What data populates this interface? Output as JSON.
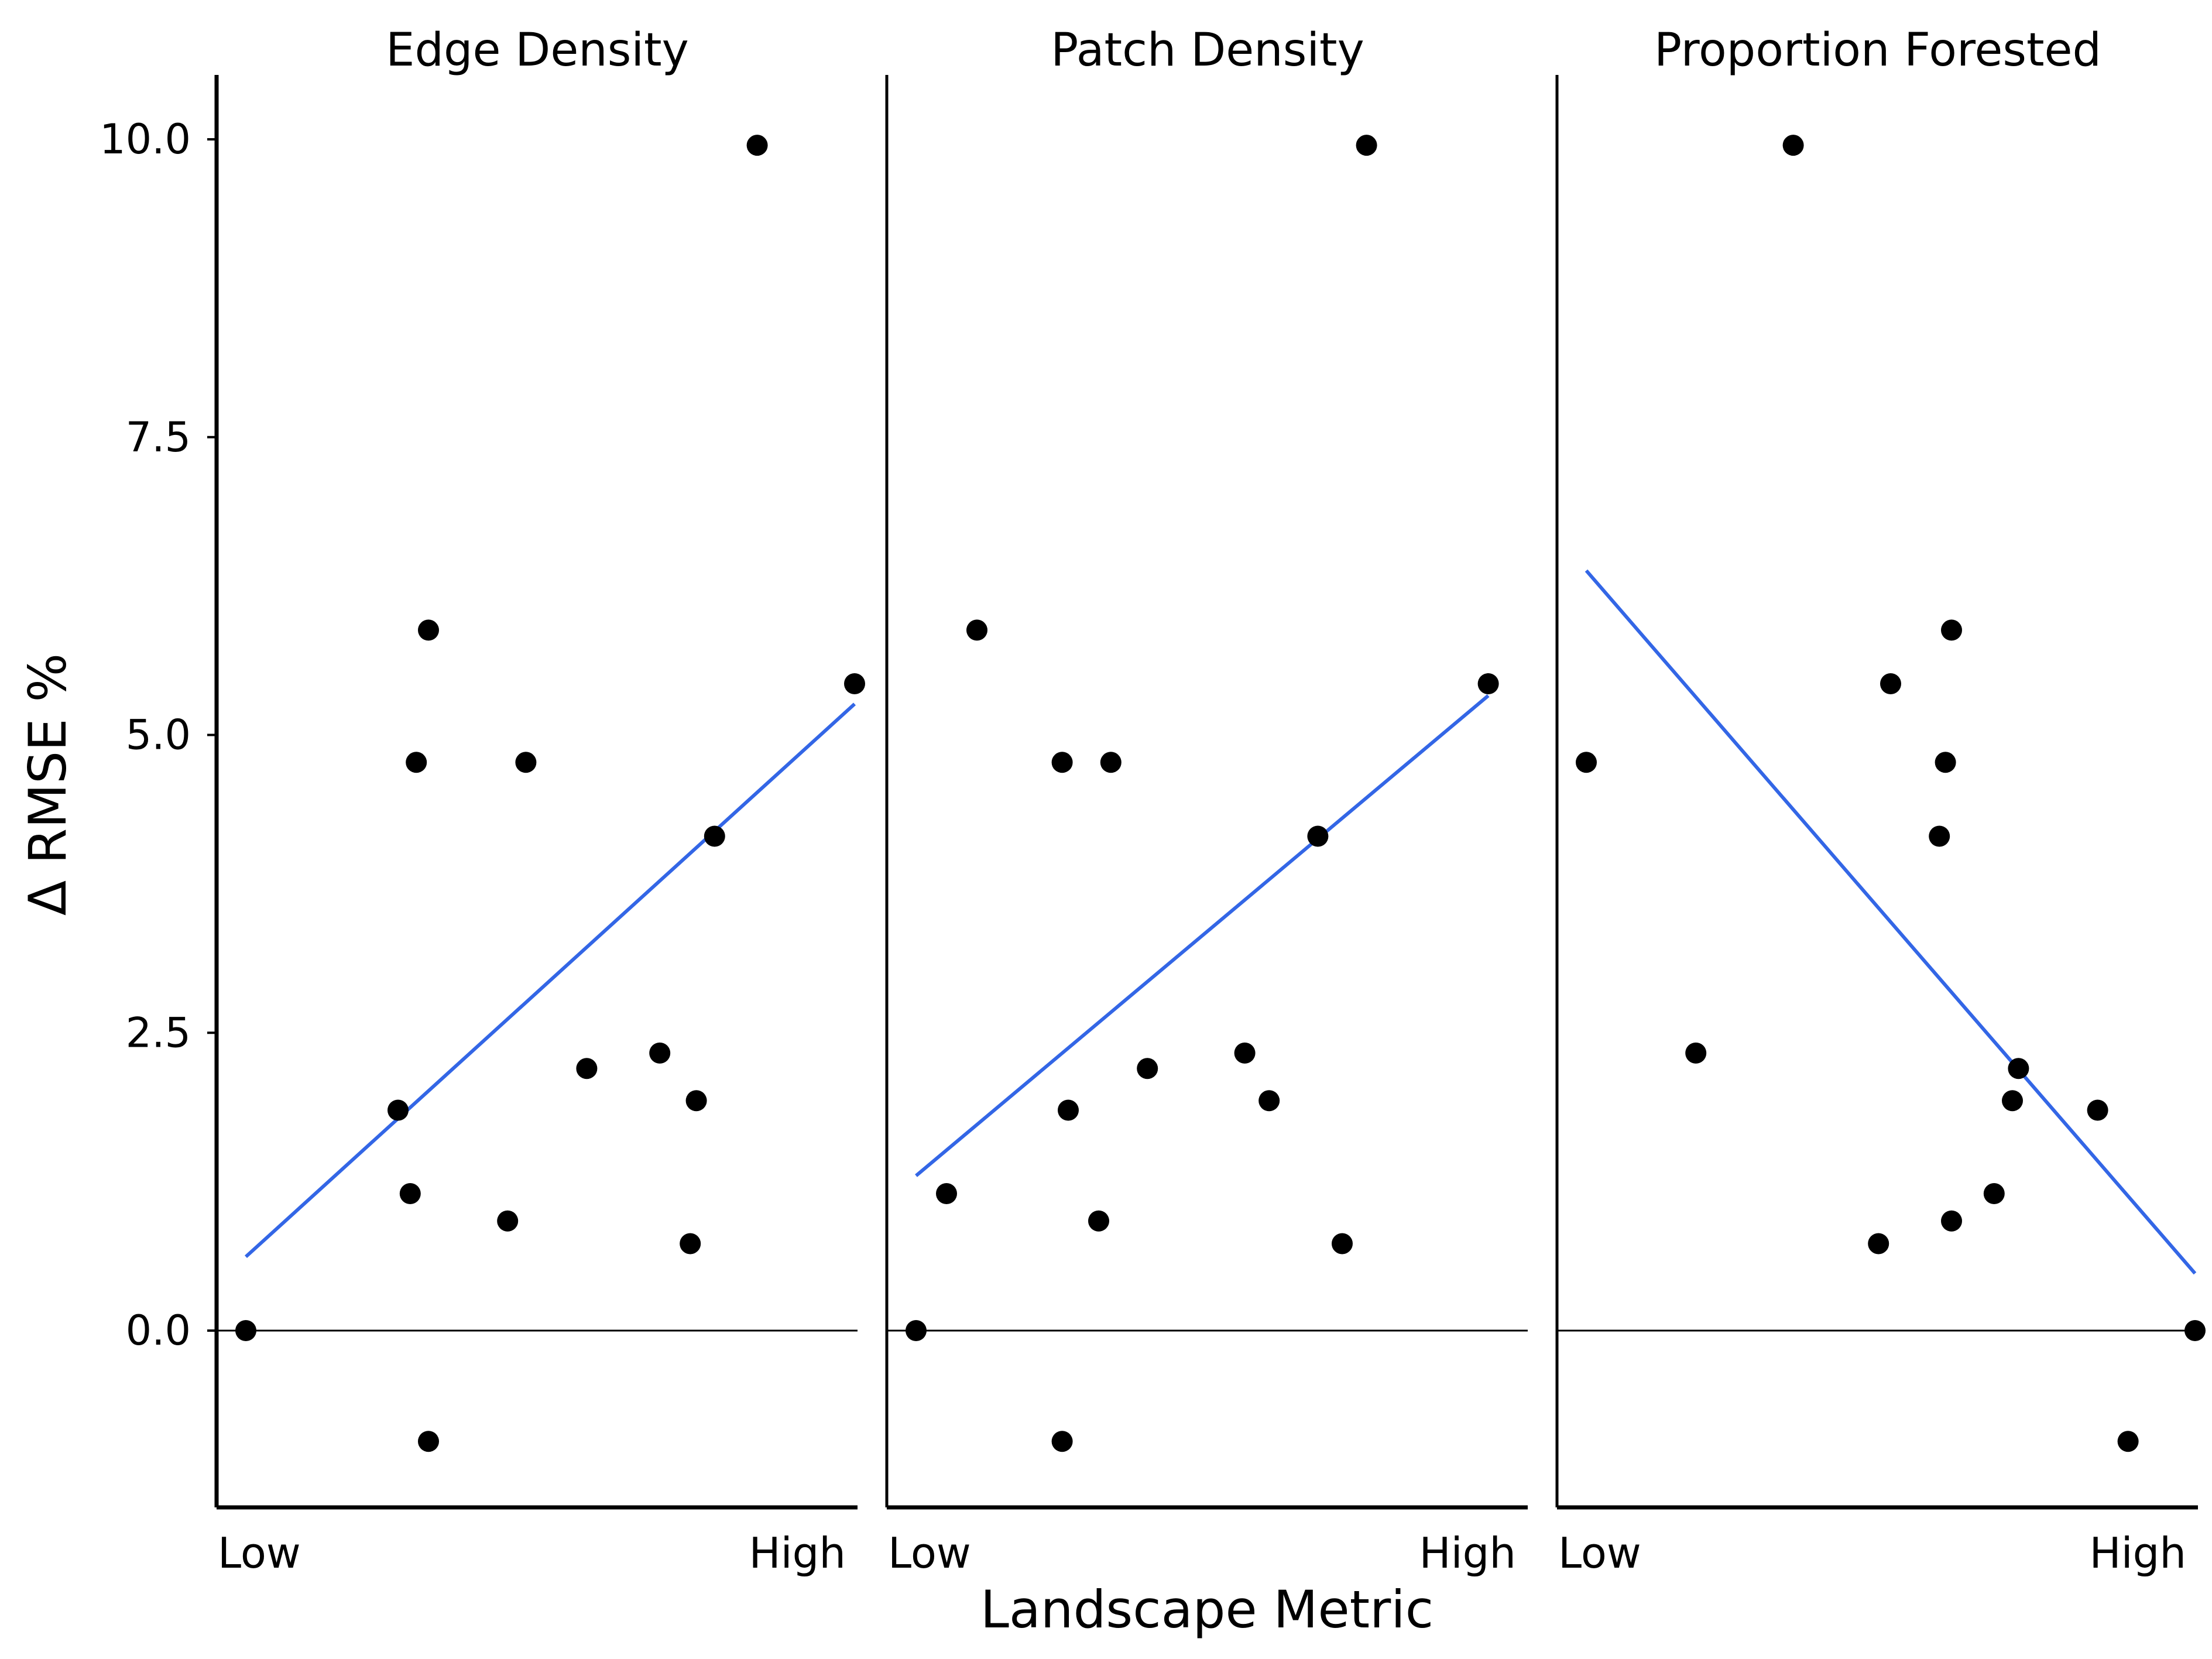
{
  "chart_data": {
    "type": "scatter",
    "layout": "faceted",
    "ylabel": "Δ RMSE %",
    "xlabel": "Landscape Metric",
    "ylim": [
      -1.5,
      10.5
    ],
    "yticks": [
      0.0,
      2.5,
      5.0,
      7.5,
      10.0
    ],
    "ytick_labels": [
      "0.0",
      "2.5",
      "5.0",
      "7.5",
      "10.0"
    ],
    "xlim": [
      0,
      1
    ],
    "xtick_labels": [
      "Low",
      "High"
    ],
    "reference_line_y": 0,
    "grid": false,
    "colors": {
      "points": "#000000",
      "fit_line": "#3366e6",
      "axes": "#000000"
    },
    "panels": [
      {
        "title": "Edge Density",
        "points": [
          {
            "x": 0.0,
            "y": 0.0
          },
          {
            "x": 0.25,
            "y": 1.85
          },
          {
            "x": 0.27,
            "y": 1.15
          },
          {
            "x": 0.28,
            "y": 4.77
          },
          {
            "x": 0.3,
            "y": 5.88
          },
          {
            "x": 0.3,
            "y": -0.93
          },
          {
            "x": 0.43,
            "y": 0.92
          },
          {
            "x": 0.46,
            "y": 4.77
          },
          {
            "x": 0.56,
            "y": 2.2
          },
          {
            "x": 0.68,
            "y": 2.33
          },
          {
            "x": 0.73,
            "y": 0.73
          },
          {
            "x": 0.74,
            "y": 1.93
          },
          {
            "x": 0.77,
            "y": 4.15
          },
          {
            "x": 0.84,
            "y": 9.95
          },
          {
            "x": 1.0,
            "y": 5.43
          }
        ],
        "fit": {
          "x": [
            0.0,
            1.0
          ],
          "y": [
            0.62,
            5.26
          ]
        }
      },
      {
        "title": "Patch Density",
        "points": [
          {
            "x": 0.0,
            "y": 0.0
          },
          {
            "x": 0.05,
            "y": 1.15
          },
          {
            "x": 0.1,
            "y": 5.88
          },
          {
            "x": 0.24,
            "y": 4.77
          },
          {
            "x": 0.24,
            "y": -0.93
          },
          {
            "x": 0.25,
            "y": 1.85
          },
          {
            "x": 0.3,
            "y": 0.92
          },
          {
            "x": 0.32,
            "y": 4.77
          },
          {
            "x": 0.38,
            "y": 2.2
          },
          {
            "x": 0.54,
            "y": 2.33
          },
          {
            "x": 0.58,
            "y": 1.93
          },
          {
            "x": 0.66,
            "y": 4.15
          },
          {
            "x": 0.7,
            "y": 0.73
          },
          {
            "x": 0.74,
            "y": 9.95
          },
          {
            "x": 0.94,
            "y": 5.43
          }
        ],
        "fit": {
          "x": [
            0.0,
            0.94
          ],
          "y": [
            1.3,
            5.33
          ]
        }
      },
      {
        "title": "Proportion Forested",
        "points": [
          {
            "x": 0.0,
            "y": 4.77
          },
          {
            "x": 0.18,
            "y": 2.33
          },
          {
            "x": 0.34,
            "y": 9.95
          },
          {
            "x": 0.48,
            "y": 0.73
          },
          {
            "x": 0.5,
            "y": 5.43
          },
          {
            "x": 0.58,
            "y": 4.15
          },
          {
            "x": 0.59,
            "y": 4.77
          },
          {
            "x": 0.6,
            "y": 5.88
          },
          {
            "x": 0.6,
            "y": 0.92
          },
          {
            "x": 0.67,
            "y": 1.15
          },
          {
            "x": 0.7,
            "y": 1.93
          },
          {
            "x": 0.71,
            "y": 2.2
          },
          {
            "x": 0.84,
            "y": 1.85
          },
          {
            "x": 0.89,
            "y": -0.93
          },
          {
            "x": 1.0,
            "y": 0.0
          }
        ],
        "fit": {
          "x": [
            0.0,
            1.0
          ],
          "y": [
            6.38,
            0.48
          ]
        }
      }
    ]
  }
}
